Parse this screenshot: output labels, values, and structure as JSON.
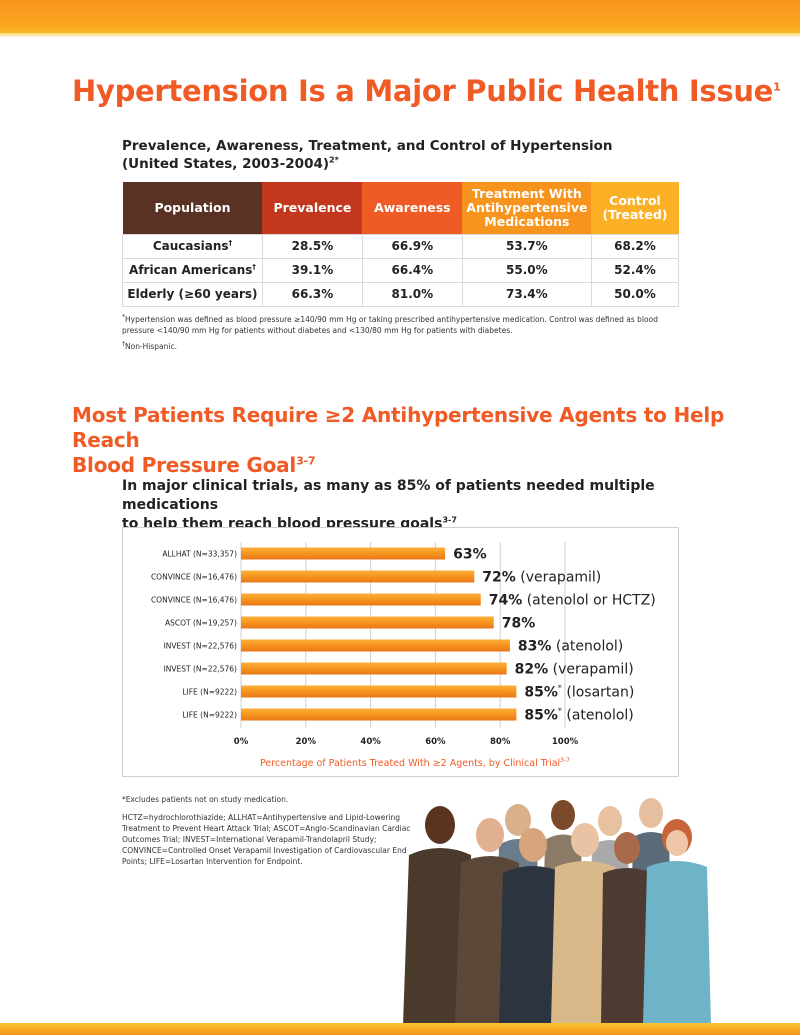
{
  "title": {
    "text": "Hypertension Is a Major Public Health Issue",
    "ref": "1"
  },
  "table": {
    "caption_line1": "Prevalence, Awareness, Treatment, and Control of Hypertension",
    "caption_line2": "(United States, 2003-2004)",
    "caption_ref": "2*",
    "headers": [
      "Population",
      "Prevalence",
      "Awareness",
      "Treatment With Antihypertensive Medications",
      "Control (Treated)"
    ],
    "header_colors": [
      "#5a3224",
      "#c4371f",
      "#f05a24",
      "#f7941d",
      "#fbb026"
    ],
    "rows": [
      {
        "population": "Caucasians",
        "mark": "†",
        "prevalence": "28.5%",
        "awareness": "66.9%",
        "treatment": "53.7%",
        "control": "68.2%"
      },
      {
        "population": "African Americans",
        "mark": "†",
        "prevalence": "39.1%",
        "awareness": "66.4%",
        "treatment": "55.0%",
        "control": "52.4%"
      },
      {
        "population": "Elderly (≥60 years)",
        "mark": "",
        "prevalence": "66.3%",
        "awareness": "81.0%",
        "treatment": "73.4%",
        "control": "50.0%"
      }
    ]
  },
  "footnotes": {
    "hypertension_mark": "*",
    "hypertension_def": "Hypertension was defined as blood pressure ≥140/90 mm Hg or taking prescribed antihypertensive medication. Control was defined as blood pressure <140/90 mm Hg for patients without diabetes and <130/80 mm Hg for patients with diabetes.",
    "nonhispanic_mark": "†",
    "nonhispanic": "Non-Hispanic."
  },
  "section2": {
    "title_line1": "Most Patients Require ≥2 Antihypertensive Agents to Help Reach",
    "title_line2": "Blood Pressure Goal",
    "title_ref": "3-7",
    "lead_line1": "In major clinical trials, as many as 85% of patients needed multiple medications",
    "lead_line2": "to help them reach blood pressure goals",
    "lead_ref": "3-7"
  },
  "chart_data": {
    "type": "bar",
    "orientation": "horizontal",
    "categories": [
      "ALLHAT (N=33,357)",
      "CONVINCE (N=16,476)",
      "CONVINCE (N=16,476)",
      "ASCOT (N=19,257)",
      "INVEST (N=22,576)",
      "INVEST (N=22,576)",
      "LIFE (N=9222)",
      "LIFE (N=9222)"
    ],
    "values": [
      63,
      72,
      74,
      78,
      83,
      82,
      85,
      85
    ],
    "value_labels": [
      "63%",
      "72%",
      "74%",
      "78%",
      "83%",
      "82%",
      "85%",
      "85%"
    ],
    "value_marks": [
      "",
      "",
      "",
      "",
      "",
      "",
      "*",
      "*"
    ],
    "value_notes": [
      "",
      "(verapamil)",
      "(atenolol or HCTZ)",
      "",
      "(atenolol)",
      "(verapamil)",
      "(losartan)",
      "(atenolol)"
    ],
    "xlim": [
      0,
      100
    ],
    "xticks": [
      "0%",
      "20%",
      "40%",
      "60%",
      "80%",
      "100%"
    ],
    "xlabel": "Percentage of Patients Treated With ≥2 Agents, by Clinical Trial",
    "xlabel_ref": "3-7",
    "bar_color": "#f7941d",
    "grid": "vertical"
  },
  "notes": {
    "excludes": "*Excludes patients not on study medication.",
    "abbreviations": "HCTZ=hydrochlorothiazide; ALLHAT=Antihypertensive and Lipid-Lowering Treatment to Prevent Heart Attack Trial; ASCOT=Anglo-Scandinavian Cardiac Outcomes Trial; INVEST=International Verapamil-Trandolapril Study; CONVINCE=Controlled Onset Verapamil Investigation of Cardiovascular End Points; LIFE=Losartan Intervention for Endpoint."
  }
}
